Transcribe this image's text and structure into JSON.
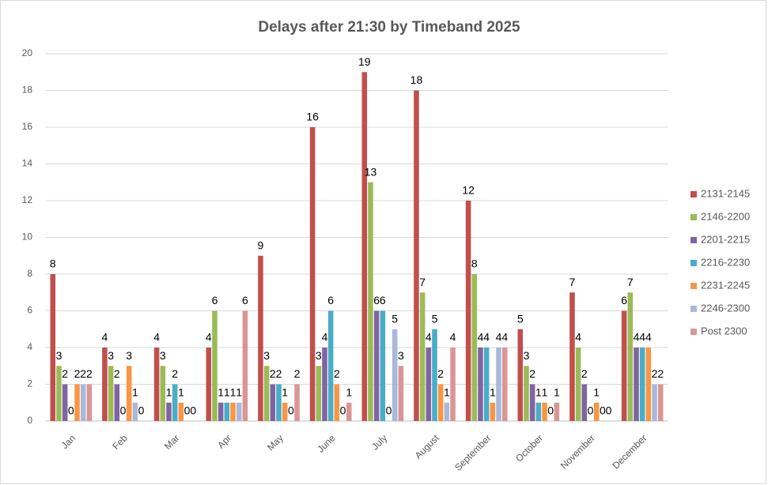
{
  "chart_data": {
    "type": "bar",
    "title": "Delays after 21:30 by Timeband 2025",
    "categories": [
      "Jan",
      "Feb",
      "Mar",
      "Apr",
      "May",
      "June",
      "July",
      "August",
      "September",
      "October",
      "November",
      "December"
    ],
    "series": [
      {
        "name": "2131-2145",
        "color": "#c0504d",
        "values": [
          8,
          4,
          4,
          4,
          9,
          16,
          19,
          18,
          12,
          5,
          7,
          6
        ]
      },
      {
        "name": "2146-2200",
        "color": "#9bbb59",
        "values": [
          3,
          3,
          3,
          6,
          3,
          3,
          13,
          7,
          8,
          3,
          4,
          7
        ]
      },
      {
        "name": "2201-2215",
        "color": "#8064a2",
        "values": [
          2,
          2,
          1,
          1,
          2,
          4,
          6,
          4,
          4,
          2,
          2,
          4
        ]
      },
      {
        "name": "2216-2230",
        "color": "#4bacc6",
        "values": [
          0,
          0,
          2,
          1,
          2,
          6,
          6,
          5,
          4,
          1,
          0,
          4
        ]
      },
      {
        "name": "2231-2245",
        "color": "#f79646",
        "values": [
          2,
          3,
          1,
          1,
          1,
          2,
          0,
          2,
          1,
          1,
          1,
          4
        ]
      },
      {
        "name": "2246-2300",
        "color": "#a9b9dc",
        "values": [
          2,
          1,
          0,
          1,
          0,
          0,
          5,
          1,
          4,
          0,
          0,
          2
        ]
      },
      {
        "name": "Post 2300",
        "color": "#d99694",
        "values": [
          2,
          0,
          0,
          6,
          2,
          1,
          3,
          4,
          4,
          1,
          0,
          2
        ]
      }
    ],
    "ylim": [
      0,
      20
    ],
    "yticks": [
      0,
      2,
      4,
      6,
      8,
      10,
      12,
      14,
      16,
      18,
      20
    ],
    "grid": true,
    "legend": "right"
  }
}
